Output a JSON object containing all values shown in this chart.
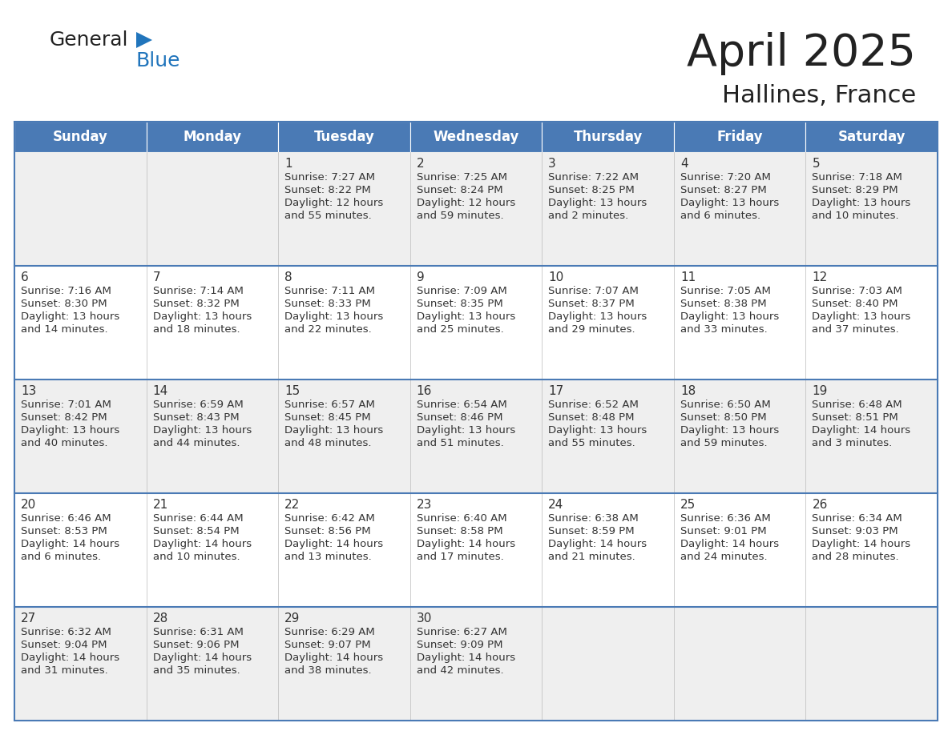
{
  "title": "April 2025",
  "subtitle": "Hallines, France",
  "days_of_week": [
    "Sunday",
    "Monday",
    "Tuesday",
    "Wednesday",
    "Thursday",
    "Friday",
    "Saturday"
  ],
  "header_bg": "#4a7ab5",
  "header_text": "#FFFFFF",
  "cell_bg_odd": "#EFEFEF",
  "cell_bg_even": "#FFFFFF",
  "row_border_color": "#4a7ab5",
  "day_number_color": "#333333",
  "text_color": "#333333",
  "title_color": "#222222",
  "logo_text_color": "#222222",
  "logo_blue_color": "#2175BC",
  "logo_triangle_color": "#2175BC",
  "calendar": [
    [
      null,
      null,
      {
        "day": 1,
        "sunrise": "7:27 AM",
        "sunset": "8:22 PM",
        "daylight": "12 hours",
        "daylight2": "and 55 minutes."
      },
      {
        "day": 2,
        "sunrise": "7:25 AM",
        "sunset": "8:24 PM",
        "daylight": "12 hours",
        "daylight2": "and 59 minutes."
      },
      {
        "day": 3,
        "sunrise": "7:22 AM",
        "sunset": "8:25 PM",
        "daylight": "13 hours",
        "daylight2": "and 2 minutes."
      },
      {
        "day": 4,
        "sunrise": "7:20 AM",
        "sunset": "8:27 PM",
        "daylight": "13 hours",
        "daylight2": "and 6 minutes."
      },
      {
        "day": 5,
        "sunrise": "7:18 AM",
        "sunset": "8:29 PM",
        "daylight": "13 hours",
        "daylight2": "and 10 minutes."
      }
    ],
    [
      {
        "day": 6,
        "sunrise": "7:16 AM",
        "sunset": "8:30 PM",
        "daylight": "13 hours",
        "daylight2": "and 14 minutes."
      },
      {
        "day": 7,
        "sunrise": "7:14 AM",
        "sunset": "8:32 PM",
        "daylight": "13 hours",
        "daylight2": "and 18 minutes."
      },
      {
        "day": 8,
        "sunrise": "7:11 AM",
        "sunset": "8:33 PM",
        "daylight": "13 hours",
        "daylight2": "and 22 minutes."
      },
      {
        "day": 9,
        "sunrise": "7:09 AM",
        "sunset": "8:35 PM",
        "daylight": "13 hours",
        "daylight2": "and 25 minutes."
      },
      {
        "day": 10,
        "sunrise": "7:07 AM",
        "sunset": "8:37 PM",
        "daylight": "13 hours",
        "daylight2": "and 29 minutes."
      },
      {
        "day": 11,
        "sunrise": "7:05 AM",
        "sunset": "8:38 PM",
        "daylight": "13 hours",
        "daylight2": "and 33 minutes."
      },
      {
        "day": 12,
        "sunrise": "7:03 AM",
        "sunset": "8:40 PM",
        "daylight": "13 hours",
        "daylight2": "and 37 minutes."
      }
    ],
    [
      {
        "day": 13,
        "sunrise": "7:01 AM",
        "sunset": "8:42 PM",
        "daylight": "13 hours",
        "daylight2": "and 40 minutes."
      },
      {
        "day": 14,
        "sunrise": "6:59 AM",
        "sunset": "8:43 PM",
        "daylight": "13 hours",
        "daylight2": "and 44 minutes."
      },
      {
        "day": 15,
        "sunrise": "6:57 AM",
        "sunset": "8:45 PM",
        "daylight": "13 hours",
        "daylight2": "and 48 minutes."
      },
      {
        "day": 16,
        "sunrise": "6:54 AM",
        "sunset": "8:46 PM",
        "daylight": "13 hours",
        "daylight2": "and 51 minutes."
      },
      {
        "day": 17,
        "sunrise": "6:52 AM",
        "sunset": "8:48 PM",
        "daylight": "13 hours",
        "daylight2": "and 55 minutes."
      },
      {
        "day": 18,
        "sunrise": "6:50 AM",
        "sunset": "8:50 PM",
        "daylight": "13 hours",
        "daylight2": "and 59 minutes."
      },
      {
        "day": 19,
        "sunrise": "6:48 AM",
        "sunset": "8:51 PM",
        "daylight": "14 hours",
        "daylight2": "and 3 minutes."
      }
    ],
    [
      {
        "day": 20,
        "sunrise": "6:46 AM",
        "sunset": "8:53 PM",
        "daylight": "14 hours",
        "daylight2": "and 6 minutes."
      },
      {
        "day": 21,
        "sunrise": "6:44 AM",
        "sunset": "8:54 PM",
        "daylight": "14 hours",
        "daylight2": "and 10 minutes."
      },
      {
        "day": 22,
        "sunrise": "6:42 AM",
        "sunset": "8:56 PM",
        "daylight": "14 hours",
        "daylight2": "and 13 minutes."
      },
      {
        "day": 23,
        "sunrise": "6:40 AM",
        "sunset": "8:58 PM",
        "daylight": "14 hours",
        "daylight2": "and 17 minutes."
      },
      {
        "day": 24,
        "sunrise": "6:38 AM",
        "sunset": "8:59 PM",
        "daylight": "14 hours",
        "daylight2": "and 21 minutes."
      },
      {
        "day": 25,
        "sunrise": "6:36 AM",
        "sunset": "9:01 PM",
        "daylight": "14 hours",
        "daylight2": "and 24 minutes."
      },
      {
        "day": 26,
        "sunrise": "6:34 AM",
        "sunset": "9:03 PM",
        "daylight": "14 hours",
        "daylight2": "and 28 minutes."
      }
    ],
    [
      {
        "day": 27,
        "sunrise": "6:32 AM",
        "sunset": "9:04 PM",
        "daylight": "14 hours",
        "daylight2": "and 31 minutes."
      },
      {
        "day": 28,
        "sunrise": "6:31 AM",
        "sunset": "9:06 PM",
        "daylight": "14 hours",
        "daylight2": "and 35 minutes."
      },
      {
        "day": 29,
        "sunrise": "6:29 AM",
        "sunset": "9:07 PM",
        "daylight": "14 hours",
        "daylight2": "and 38 minutes."
      },
      {
        "day": 30,
        "sunrise": "6:27 AM",
        "sunset": "9:09 PM",
        "daylight": "14 hours",
        "daylight2": "and 42 minutes."
      },
      null,
      null,
      null
    ]
  ]
}
